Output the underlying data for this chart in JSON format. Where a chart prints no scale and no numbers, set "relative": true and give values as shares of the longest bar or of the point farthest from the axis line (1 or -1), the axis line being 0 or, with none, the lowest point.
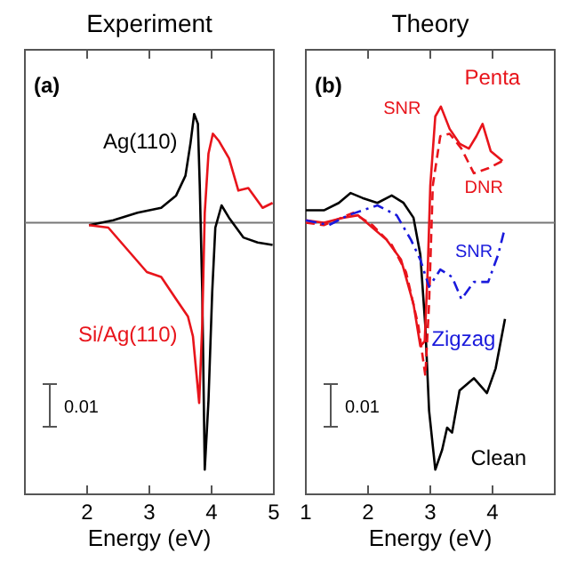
{
  "chart_data": [
    {
      "type": "line",
      "title": "Experiment",
      "xlabel": "Energy (eV)",
      "relative": true,
      "xlim": [
        1,
        5
      ],
      "xticks": [
        2,
        3,
        4,
        5
      ],
      "annotations": [
        "(a)",
        "0.01"
      ],
      "series": [
        {
          "name": "Ag(110)",
          "color": "#000000",
          "line_style": "solid",
          "x": [
            2.03,
            2.42,
            2.81,
            3.19,
            3.43,
            3.58,
            3.66,
            3.72,
            3.78,
            3.81,
            3.85,
            3.89,
            3.95,
            4.01,
            4.06,
            4.16,
            4.28,
            4.51,
            4.74,
            4.98
          ],
          "values": [
            -0.01,
            0.01,
            0.04,
            0.06,
            0.11,
            0.19,
            0.32,
            0.44,
            0.4,
            0.15,
            -0.28,
            -1,
            -0.72,
            -0.28,
            -0.02,
            0.07,
            0.02,
            -0.06,
            -0.08,
            -0.09
          ]
        },
        {
          "name": "Si/Ag(110)",
          "color": "#e8141b",
          "line_style": "solid",
          "x": [
            2.03,
            2.34,
            2.65,
            2.96,
            3.19,
            3.43,
            3.62,
            3.7,
            3.8,
            3.85,
            3.89,
            3.95,
            4.02,
            4.12,
            4.28,
            4.43,
            4.59,
            4.82,
            4.98
          ],
          "values": [
            -0.01,
            -0.02,
            -0.11,
            -0.2,
            -0.22,
            -0.31,
            -0.38,
            -0.46,
            -0.73,
            -0.41,
            0.04,
            0.28,
            0.36,
            0.33,
            0.26,
            0.13,
            0.14,
            0.06,
            0.08
          ]
        }
      ]
    },
    {
      "type": "line",
      "title": "Theory",
      "xlabel": "Energy (eV)",
      "relative": true,
      "xlim": [
        1,
        5
      ],
      "xticks": [
        1,
        2,
        3,
        4
      ],
      "annotations": [
        "(b)",
        "0.01",
        "Penta",
        "Zigzag"
      ],
      "series": [
        {
          "name": "Clean",
          "color": "#000000",
          "line_style": "solid",
          "x": [
            1.0,
            1.29,
            1.53,
            1.72,
            1.91,
            2.15,
            2.38,
            2.57,
            2.73,
            2.84,
            2.92,
            2.98,
            3.08,
            3.19,
            3.27,
            3.35,
            3.47,
            3.7,
            3.91,
            4.05,
            4.2
          ],
          "values": [
            0.05,
            0.05,
            0.08,
            0.12,
            0.1,
            0.08,
            0.11,
            0.08,
            0.02,
            -0.13,
            -0.42,
            -0.76,
            -1,
            -0.92,
            -0.83,
            -0.85,
            -0.68,
            -0.63,
            -0.69,
            -0.59,
            -0.39
          ]
        },
        {
          "name": "SNR",
          "color": "#e8141b",
          "line_style": "solid",
          "x": [
            1.0,
            1.29,
            1.6,
            1.84,
            2.07,
            2.3,
            2.53,
            2.73,
            2.84,
            2.91,
            2.96,
            3.0,
            3.08,
            3.17,
            3.31,
            3.47,
            3.62,
            3.74,
            3.84,
            3.97,
            4.16
          ],
          "values": [
            0.01,
            0,
            0.02,
            0.03,
            -0.02,
            -0.07,
            -0.15,
            -0.33,
            -0.5,
            -0.48,
            -0.18,
            0.15,
            0.43,
            0.47,
            0.38,
            0.32,
            0.3,
            0.35,
            0.4,
            0.29,
            0.25
          ]
        },
        {
          "name": "DNR",
          "color": "#e8141b",
          "line_style": "dashed",
          "x": [
            1.0,
            1.29,
            1.76,
            2.07,
            2.38,
            2.61,
            2.81,
            2.92,
            2.98,
            3.04,
            3.16,
            3.31,
            3.5,
            3.7,
            3.93,
            4.16
          ],
          "values": [
            0,
            -0.01,
            0.04,
            -0.01,
            -0.09,
            -0.2,
            -0.42,
            -0.62,
            -0.33,
            0.15,
            0.35,
            0.36,
            0.3,
            0.2,
            0.22,
            0.25
          ]
        },
        {
          "name": "SNR",
          "color": "#1a1adc",
          "line_style": "dashdot",
          "x": [
            1.0,
            1.37,
            1.68,
            2.15,
            2.46,
            2.69,
            2.84,
            2.98,
            3.16,
            3.35,
            3.5,
            3.7,
            3.93,
            4.09,
            4.2
          ],
          "values": [
            0.01,
            -0.01,
            0.03,
            0.07,
            0.03,
            -0.07,
            -0.15,
            -0.26,
            -0.19,
            -0.22,
            -0.31,
            -0.24,
            -0.24,
            -0.13,
            -0.02
          ]
        }
      ]
    }
  ]
}
